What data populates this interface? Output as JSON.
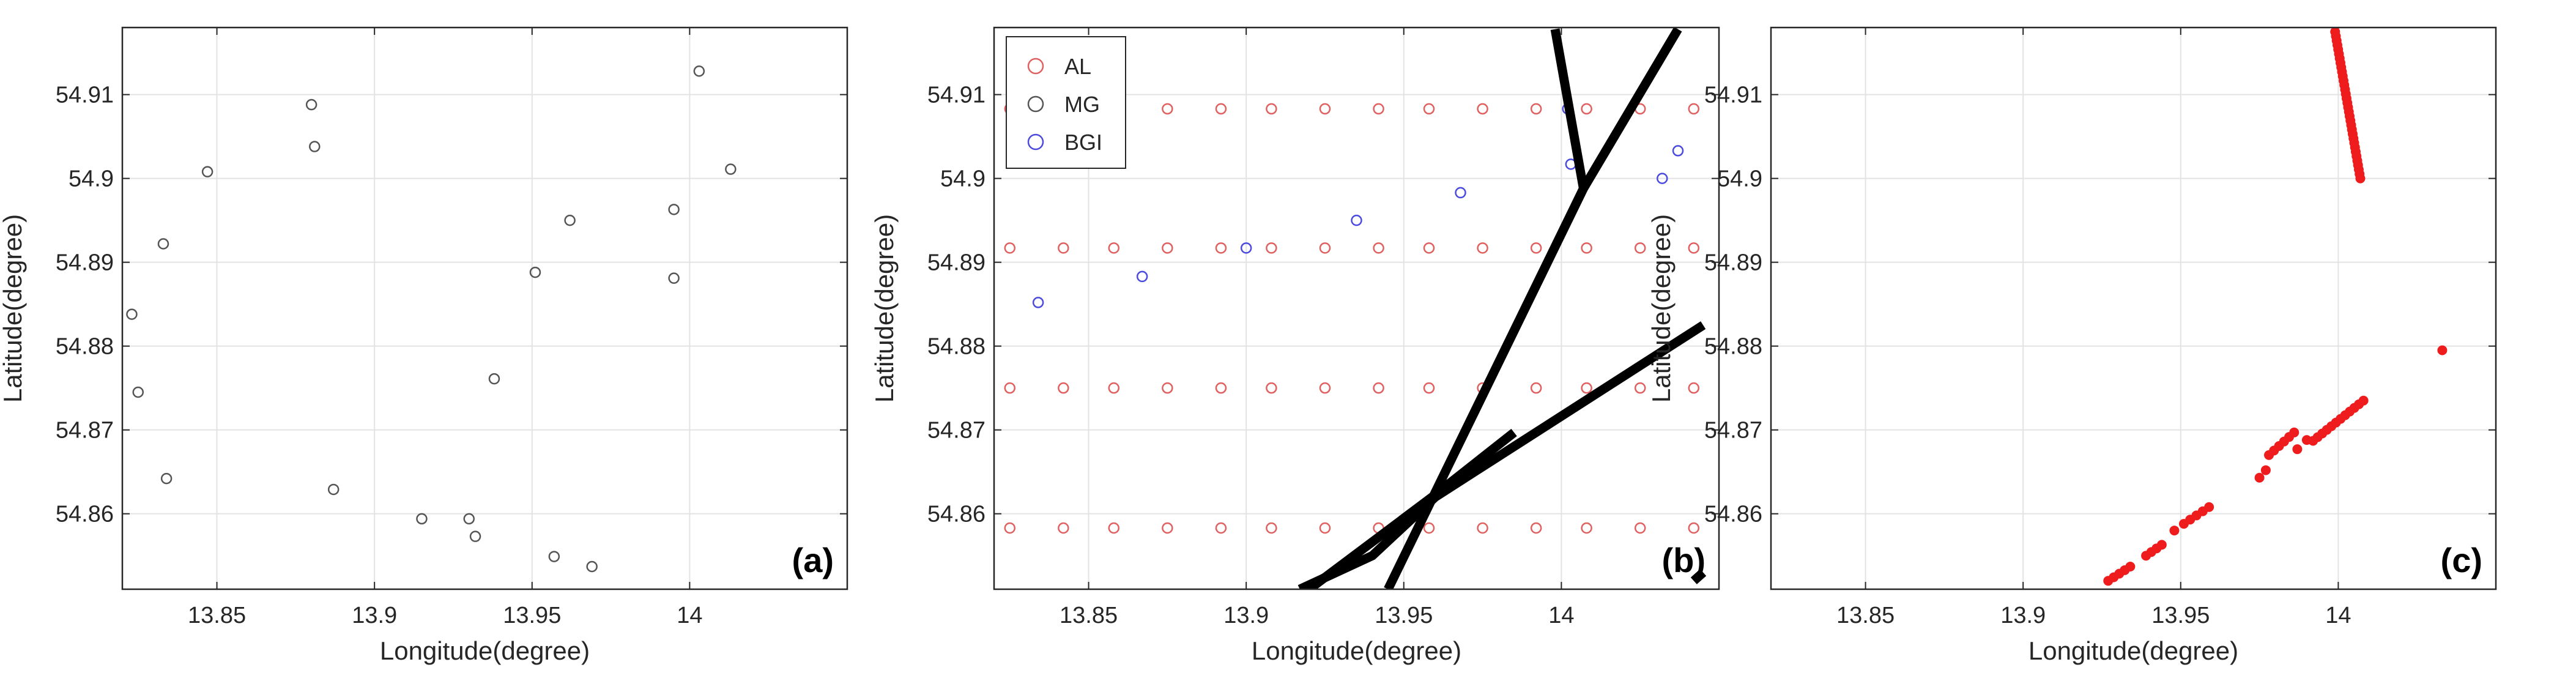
{
  "colors": {
    "grid": "#e3e3e3",
    "axis": "#262626",
    "AL": "#e06060",
    "MG": "#555555",
    "BGI": "#4a4adf",
    "track": "#000000",
    "red_points": "#ee1c1c"
  },
  "chart_data": [
    {
      "type": "scatter",
      "panel_label": "(a)",
      "xlabel": "Longitude(degree)",
      "ylabel": "Latitude(degree)",
      "xlim": [
        13.82,
        14.05
      ],
      "ylim": [
        54.851,
        54.918
      ],
      "xticks": [
        13.85,
        13.9,
        13.95,
        14.0
      ],
      "xticklabels": [
        "13.85",
        "13.9",
        "13.95",
        "14"
      ],
      "yticks": [
        54.86,
        54.87,
        54.88,
        54.89,
        54.9,
        54.91
      ],
      "yticklabels": [
        "54.86",
        "54.87",
        "54.88",
        "54.89",
        "54.9",
        "54.91"
      ],
      "grid": true,
      "series": [
        {
          "name": "MG",
          "marker": "open-circle",
          "points": [
            [
              13.823,
              54.8838
            ],
            [
              13.825,
              54.8745
            ],
            [
              13.833,
              54.8922
            ],
            [
              13.834,
              54.8642
            ],
            [
              13.847,
              54.9008
            ],
            [
              13.88,
              54.9088
            ],
            [
              13.881,
              54.9038
            ],
            [
              13.887,
              54.8629
            ],
            [
              13.915,
              54.8594
            ],
            [
              13.93,
              54.8594
            ],
            [
              13.932,
              54.8573
            ],
            [
              13.938,
              54.8761
            ],
            [
              13.951,
              54.8888
            ],
            [
              13.957,
              54.8549
            ],
            [
              13.962,
              54.895
            ],
            [
              13.969,
              54.8537
            ],
            [
              13.995,
              54.8963
            ],
            [
              13.995,
              54.8881
            ],
            [
              14.003,
              54.9128
            ],
            [
              14.013,
              54.9011
            ]
          ]
        }
      ]
    },
    {
      "type": "scatter",
      "panel_label": "(b)",
      "xlabel": "Longitude(degree)",
      "ylabel": "Latitude(degree)",
      "xlim": [
        13.82,
        14.05
      ],
      "ylim": [
        54.851,
        54.918
      ],
      "xticks": [
        13.85,
        13.9,
        13.95,
        14.0
      ],
      "xticklabels": [
        "13.85",
        "13.9",
        "13.95",
        "14"
      ],
      "yticks": [
        54.86,
        54.87,
        54.88,
        54.89,
        54.9,
        54.91
      ],
      "yticklabels": [
        "54.86",
        "54.87",
        "54.88",
        "54.89",
        "54.9",
        "54.91"
      ],
      "grid": true,
      "legend": {
        "position": "top-left",
        "entries": [
          {
            "name": "AL",
            "color_key": "AL"
          },
          {
            "name": "MG",
            "color_key": "MG"
          },
          {
            "name": "BGI",
            "color_key": "BGI"
          }
        ]
      },
      "series": [
        {
          "name": "AL",
          "marker": "open-circle",
          "grid_x": [
            13.825,
            13.842,
            13.858,
            13.875,
            13.892,
            13.908,
            13.925,
            13.942,
            13.958,
            13.975,
            13.992,
            14.008,
            14.025,
            14.042
          ],
          "grid_y": [
            54.8583,
            54.875,
            54.8917,
            54.9083
          ]
        },
        {
          "name": "BGI",
          "marker": "open-circle",
          "points": [
            [
              13.834,
              54.8852
            ],
            [
              13.867,
              54.8883
            ],
            [
              13.9,
              54.8917
            ],
            [
              13.935,
              54.895
            ],
            [
              13.968,
              54.8983
            ],
            [
              14.003,
              54.9017
            ],
            [
              14.032,
              54.9
            ],
            [
              14.037,
              54.9033
            ],
            [
              14.002,
              54.9083
            ]
          ]
        },
        {
          "name": "tracks",
          "type": "line",
          "lines": [
            [
              [
                13.945,
                54.851
              ],
              [
                14.007,
                54.8988
              ],
              [
                14.037,
                54.9178
              ]
            ],
            [
              [
                13.998,
                54.9178
              ],
              [
                14.007,
                54.8988
              ]
            ],
            [
              [
                13.92,
                54.851
              ],
              [
                13.959,
                54.862
              ],
              [
                13.985,
                54.8697
              ]
            ],
            [
              [
                13.917,
                54.851
              ],
              [
                13.94,
                54.855
              ],
              [
                13.96,
                54.862
              ],
              [
                14.045,
                54.8825
              ]
            ],
            [
              [
                14.042,
                54.852
              ],
              [
                14.045,
                54.853
              ]
            ]
          ]
        }
      ]
    },
    {
      "type": "scatter",
      "panel_label": "(c)",
      "xlabel": "Longitude(degree)",
      "ylabel": "Latitude(degree)",
      "xlim": [
        13.82,
        14.05
      ],
      "ylim": [
        54.851,
        54.918
      ],
      "xticks": [
        13.85,
        13.9,
        13.95,
        14.0
      ],
      "xticklabels": [
        "13.85",
        "13.9",
        "13.95",
        "14"
      ],
      "yticks": [
        54.86,
        54.87,
        54.88,
        54.89,
        54.9,
        54.91
      ],
      "yticklabels": [
        "54.86",
        "54.87",
        "54.88",
        "54.89",
        "54.9",
        "54.91"
      ],
      "grid": true,
      "series": [
        {
          "name": "red segments",
          "marker": "filled-dot",
          "segments": [
            {
              "from": [
                13.999,
                54.9175
              ],
              "to": [
                14.007,
                54.9
              ],
              "count": 34
            },
            {
              "from": [
                13.927,
                54.852
              ],
              "to": [
                13.934,
                54.8537
              ],
              "count": 5
            },
            {
              "from": [
                13.939,
                54.855
              ],
              "to": [
                13.944,
                54.8563
              ],
              "count": 4
            },
            {
              "from": [
                13.948,
                54.858
              ],
              "to": [
                13.951,
                54.8588
              ],
              "count": 2
            },
            {
              "from": [
                13.953,
                54.8593
              ],
              "to": [
                13.959,
                54.8608
              ],
              "count": 4
            },
            {
              "from": [
                13.975,
                54.8643
              ],
              "to": [
                13.977,
                54.8652
              ],
              "count": 2
            },
            {
              "from": [
                13.978,
                54.867
              ],
              "to": [
                13.986,
                54.8697
              ],
              "count": 6
            },
            {
              "from": [
                13.987,
                54.8677
              ],
              "to": [
                13.99,
                54.8688
              ],
              "count": 2
            },
            {
              "from": [
                13.992,
                54.8687
              ],
              "to": [
                14.008,
                54.8735
              ],
              "count": 12
            }
          ],
          "points": [
            [
              14.033,
              54.8795
            ]
          ]
        }
      ]
    }
  ]
}
